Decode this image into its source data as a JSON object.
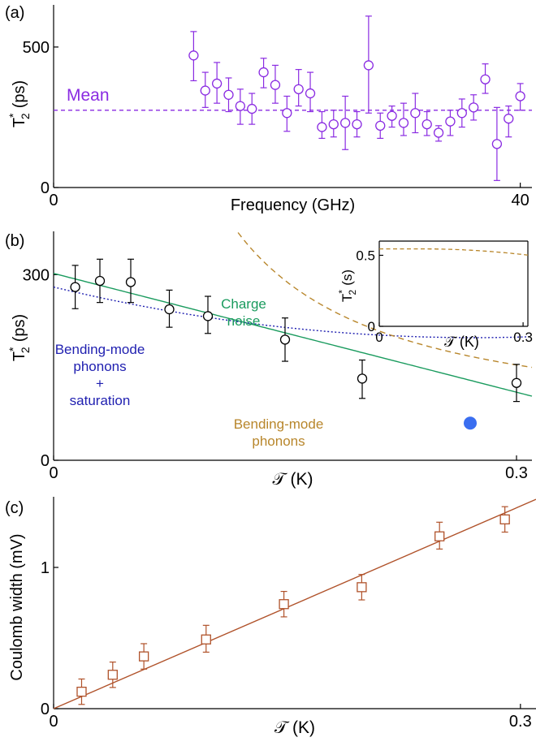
{
  "chart_data": [
    {
      "panel": "(a)",
      "type": "scatter",
      "xlabel": "Frequency (GHz)",
      "ylabel": "T",
      "ylabel_sup": "*",
      "ylabel_sub": "2",
      "ylabel_unit": "(ps)",
      "xlim": [
        0,
        41
      ],
      "ylim": [
        0,
        650
      ],
      "xticks": [
        {
          "v": 0,
          "label": "0"
        },
        {
          "v": 40,
          "label": "40"
        }
      ],
      "yticks": [
        {
          "v": 0,
          "label": "0"
        },
        {
          "v": 500,
          "label": "500"
        }
      ],
      "mean_line": {
        "value": 275,
        "label": "Mean",
        "color": "#8a2be2"
      },
      "color": "#8a2be2",
      "points": [
        {
          "x": 12.0,
          "y": 470,
          "lo": 380,
          "hi": 555
        },
        {
          "x": 13.0,
          "y": 345,
          "lo": 285,
          "hi": 410
        },
        {
          "x": 14.0,
          "y": 370,
          "lo": 300,
          "hi": 445
        },
        {
          "x": 15.0,
          "y": 330,
          "lo": 270,
          "hi": 390
        },
        {
          "x": 16.0,
          "y": 290,
          "lo": 225,
          "hi": 350
        },
        {
          "x": 17.0,
          "y": 280,
          "lo": 225,
          "hi": 335
        },
        {
          "x": 18.0,
          "y": 410,
          "lo": 355,
          "hi": 460
        },
        {
          "x": 19.0,
          "y": 365,
          "lo": 300,
          "hi": 435
        },
        {
          "x": 20.0,
          "y": 265,
          "lo": 200,
          "hi": 325
        },
        {
          "x": 21.0,
          "y": 350,
          "lo": 290,
          "hi": 420
        },
        {
          "x": 22.0,
          "y": 335,
          "lo": 270,
          "hi": 410
        },
        {
          "x": 23.0,
          "y": 215,
          "lo": 175,
          "hi": 270
        },
        {
          "x": 24.0,
          "y": 225,
          "lo": 180,
          "hi": 275
        },
        {
          "x": 25.0,
          "y": 230,
          "lo": 135,
          "hi": 325
        },
        {
          "x": 26.0,
          "y": 225,
          "lo": 180,
          "hi": 270
        },
        {
          "x": 27.0,
          "y": 435,
          "lo": 265,
          "hi": 610
        },
        {
          "x": 28.0,
          "y": 220,
          "lo": 175,
          "hi": 265
        },
        {
          "x": 29.0,
          "y": 255,
          "lo": 215,
          "hi": 290
        },
        {
          "x": 30.0,
          "y": 230,
          "lo": 185,
          "hi": 300
        },
        {
          "x": 31.0,
          "y": 265,
          "lo": 195,
          "hi": 335
        },
        {
          "x": 32.0,
          "y": 225,
          "lo": 185,
          "hi": 270
        },
        {
          "x": 33.0,
          "y": 195,
          "lo": 165,
          "hi": 220
        },
        {
          "x": 34.0,
          "y": 235,
          "lo": 185,
          "hi": 275
        },
        {
          "x": 35.0,
          "y": 265,
          "lo": 215,
          "hi": 315
        },
        {
          "x": 36.0,
          "y": 285,
          "lo": 240,
          "hi": 330
        },
        {
          "x": 37.0,
          "y": 385,
          "lo": 335,
          "hi": 440
        },
        {
          "x": 38.0,
          "y": 155,
          "lo": 25,
          "hi": 285
        },
        {
          "x": 39.0,
          "y": 245,
          "lo": 180,
          "hi": 290
        },
        {
          "x": 40.0,
          "y": 325,
          "lo": 275,
          "hi": 370
        }
      ]
    },
    {
      "panel": "(b)",
      "type": "scatter",
      "xlabel": "𝒯 (K)",
      "ylabel": "T",
      "ylabel_sup": "*",
      "ylabel_sub": "2",
      "ylabel_unit": "(ps)",
      "xlim": [
        0,
        0.31
      ],
      "ylim": [
        0,
        370
      ],
      "xticks": [
        {
          "v": 0,
          "label": "0"
        },
        {
          "v": 0.3,
          "label": "0.3"
        }
      ],
      "yticks": [
        {
          "v": 0,
          "label": "0"
        },
        {
          "v": 300,
          "label": "300"
        }
      ],
      "points": [
        {
          "x": 0.014,
          "y": 280,
          "lo": 245,
          "hi": 315
        },
        {
          "x": 0.03,
          "y": 290,
          "lo": 255,
          "hi": 325
        },
        {
          "x": 0.05,
          "y": 288,
          "lo": 255,
          "hi": 325
        },
        {
          "x": 0.075,
          "y": 244,
          "lo": 215,
          "hi": 275
        },
        {
          "x": 0.1,
          "y": 233,
          "lo": 205,
          "hi": 265
        },
        {
          "x": 0.15,
          "y": 195,
          "lo": 160,
          "hi": 230
        },
        {
          "x": 0.2,
          "y": 132,
          "lo": 100,
          "hi": 162
        },
        {
          "x": 0.3,
          "y": 125,
          "lo": 95,
          "hi": 155
        }
      ],
      "special_point": {
        "x": 0.27,
        "y": 60,
        "color": "#3a6ef0"
      },
      "curves": [
        {
          "name": "Charge noise",
          "color": "#1a9b5e",
          "style": "solid",
          "label_lines": [
            "Charge",
            "noise"
          ]
        },
        {
          "name": "Bending-mode phonons + saturation",
          "color": "#1f1fb0",
          "style": "dotted",
          "label_lines": [
            "Bending-mode",
            "phonons",
            "+",
            "saturation"
          ]
        },
        {
          "name": "Bending-mode phonons",
          "color": "#b8862b",
          "style": "dashed",
          "label_lines": [
            "Bending-mode",
            "phonons"
          ]
        }
      ],
      "inset": {
        "ylabel": "T",
        "ylabel_sup": "*",
        "ylabel_sub": "2",
        "ylabel_unit": "(s)",
        "xlabel": "𝒯 (K)",
        "xlim": [
          0,
          0.31
        ],
        "ylim": [
          0,
          0.6
        ],
        "xticks": [
          {
            "v": 0,
            "label": "0"
          },
          {
            "v": 0.3,
            "label": "0.3"
          }
        ],
        "yticks": [
          {
            "v": 0,
            "label": "0"
          },
          {
            "v": 0.5,
            "label": "0.5"
          }
        ],
        "curve_color": "#b8862b"
      }
    },
    {
      "panel": "(c)",
      "type": "scatter",
      "xlabel": "𝒯 (K)",
      "ylabel": "Coulomb width (mV)",
      "xlim": [
        0,
        0.31
      ],
      "ylim": [
        0,
        1.5
      ],
      "xticks": [
        {
          "v": 0,
          "label": "0"
        },
        {
          "v": 0.3,
          "label": "0.3"
        }
      ],
      "yticks": [
        {
          "v": 0,
          "label": "0"
        },
        {
          "v": 1,
          "label": "1"
        }
      ],
      "color": "#b0522a",
      "fit": {
        "slope": 4.78,
        "intercept": 0.0
      },
      "points": [
        {
          "x": 0.018,
          "y": 0.12,
          "lo": 0.03,
          "hi": 0.21
        },
        {
          "x": 0.038,
          "y": 0.24,
          "lo": 0.15,
          "hi": 0.33
        },
        {
          "x": 0.058,
          "y": 0.37,
          "lo": 0.28,
          "hi": 0.46
        },
        {
          "x": 0.098,
          "y": 0.49,
          "lo": 0.4,
          "hi": 0.59
        },
        {
          "x": 0.148,
          "y": 0.74,
          "lo": 0.65,
          "hi": 0.83
        },
        {
          "x": 0.198,
          "y": 0.86,
          "lo": 0.77,
          "hi": 0.95
        },
        {
          "x": 0.248,
          "y": 1.22,
          "lo": 1.13,
          "hi": 1.32
        },
        {
          "x": 0.29,
          "y": 1.34,
          "lo": 1.25,
          "hi": 1.43
        }
      ]
    }
  ]
}
